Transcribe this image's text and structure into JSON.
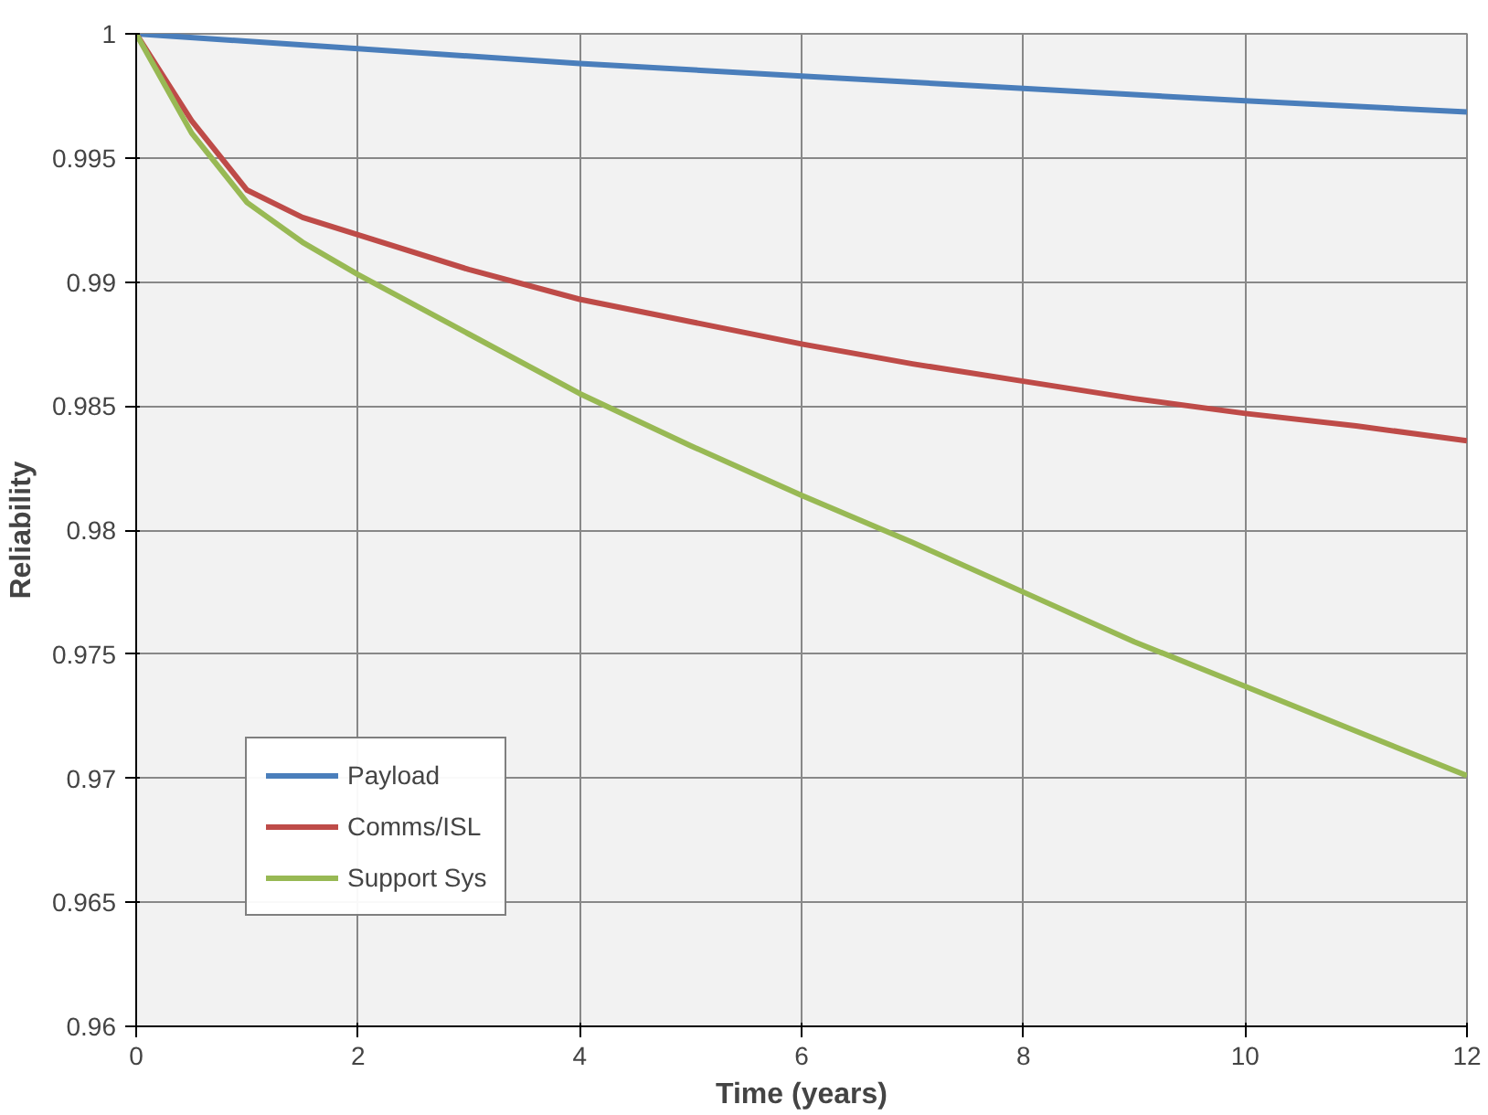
{
  "chart_data": {
    "type": "line",
    "xlabel": "Time (years)",
    "ylabel": "Reliability",
    "xlim": [
      0,
      12
    ],
    "xticks": [
      0,
      2,
      4,
      6,
      8,
      10,
      12
    ],
    "ylim": [
      0.96,
      1
    ],
    "yticks": [
      0.96,
      0.965,
      0.97,
      0.975,
      0.98,
      0.985,
      0.99,
      0.995,
      1
    ],
    "grid": true,
    "legend": "bottom left",
    "marker": "none",
    "line_style": "solid",
    "series": [
      {
        "name": "Payload",
        "color": "#4a7ebb",
        "x": [
          0,
          2,
          4,
          6,
          8,
          10,
          12
        ],
        "values": [
          1,
          0.9994,
          0.9988,
          0.9983,
          0.9978,
          0.9973,
          0.99685
        ]
      },
      {
        "name": "Comms/ISL",
        "color": "#be4b48",
        "x": [
          0,
          0.5,
          1,
          1.5,
          2,
          3,
          4,
          5,
          6,
          7,
          8,
          9,
          10,
          11,
          12
        ],
        "values": [
          1,
          0.9965,
          0.9937,
          0.9926,
          0.9919,
          0.9905,
          0.9893,
          0.9884,
          0.9875,
          0.9867,
          0.986,
          0.9853,
          0.9847,
          0.9842,
          0.9836
        ]
      },
      {
        "name": "Support Sys",
        "color": "#98b954",
        "x": [
          0,
          0.5,
          1,
          1.5,
          2,
          3,
          4,
          5,
          6,
          7,
          8,
          9,
          10,
          11,
          12
        ],
        "values": [
          1,
          0.996,
          0.9932,
          0.9916,
          0.9903,
          0.9879,
          0.9855,
          0.9834,
          0.9814,
          0.9795,
          0.9775,
          0.9755,
          0.9737,
          0.9719,
          0.9701
        ]
      }
    ]
  }
}
